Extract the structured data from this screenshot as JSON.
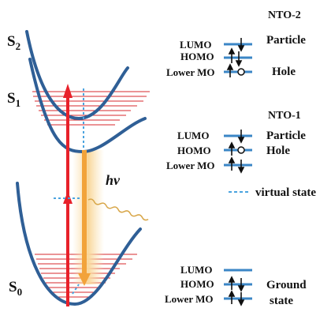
{
  "states": {
    "s2": {
      "main": "S",
      "sub": "2"
    },
    "s1": {
      "main": "S",
      "sub": "1"
    },
    "s0": {
      "main": "S",
      "sub": "0"
    }
  },
  "photon_label": "hν",
  "legend": {
    "virtual_state": "virtual state"
  },
  "nto2": {
    "title": "NTO-2",
    "levels": [
      "LUMO",
      "HOMO",
      "Lower MO"
    ],
    "notes": [
      "Particle",
      "Hole"
    ]
  },
  "nto1": {
    "title": "NTO-1",
    "levels": [
      "LUMO",
      "HOMO",
      "Lower MO"
    ],
    "notes": [
      "Particle",
      "Hole"
    ]
  },
  "ground": {
    "levels": [
      "LUMO",
      "HOMO",
      "Lower MO"
    ],
    "notes": [
      "Ground",
      "state"
    ]
  },
  "colors": {
    "curve": "#2f5f96",
    "hatch": "#d7282e",
    "excitation_arrow": "#e8212a",
    "emission_arrow": "#f2a33a",
    "emission_glow": "#fbe3b4",
    "level_line": "#3b86c6",
    "virtual_state": "#4aa3df"
  }
}
